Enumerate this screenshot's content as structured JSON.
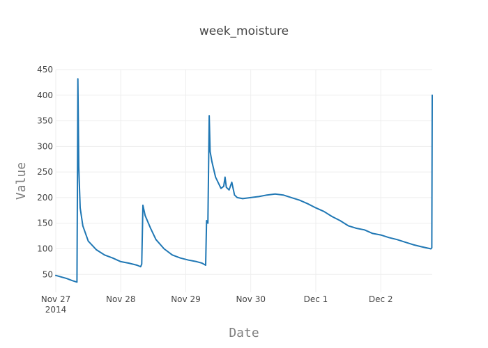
{
  "chart_data": {
    "type": "line",
    "title": "week_moisture",
    "xlabel": "Date",
    "ylabel": "Value",
    "x_axis": {
      "type": "date",
      "range": [
        "2014-11-27T00:00",
        "2014-12-02T19:00"
      ],
      "ticks": [
        {
          "date": "2014-11-27T00:00",
          "label": "Nov 27",
          "sublabel": "2014"
        },
        {
          "date": "2014-11-28T00:00",
          "label": "Nov 28"
        },
        {
          "date": "2014-11-29T00:00",
          "label": "Nov 29"
        },
        {
          "date": "2014-11-30T00:00",
          "label": "Nov 30"
        },
        {
          "date": "2014-12-01T00:00",
          "label": "Dec 1"
        },
        {
          "date": "2014-12-02T00:00",
          "label": "Dec 2"
        }
      ]
    },
    "y_axis": {
      "range": [
        15,
        450
      ],
      "ticks": [
        50,
        100,
        150,
        200,
        250,
        300,
        350,
        400,
        450
      ]
    },
    "grid": true,
    "legend": "none",
    "colors": {
      "series": "#1f77b4",
      "grid": "#eeeeee",
      "text": "#444444",
      "axis_title": "#7f7f7f"
    },
    "series": [
      {
        "color": "#1f77b4",
        "x": [
          "2014-11-27T00:00",
          "2014-11-27T02:00",
          "2014-11-27T04:00",
          "2014-11-27T06:00",
          "2014-11-27T07:50",
          "2014-11-27T08:00",
          "2014-11-27T08:10",
          "2014-11-27T08:30",
          "2014-11-27T09:00",
          "2014-11-27T10:00",
          "2014-11-27T12:00",
          "2014-11-27T15:00",
          "2014-11-27T18:00",
          "2014-11-27T21:00",
          "2014-11-28T00:00",
          "2014-11-28T03:00",
          "2014-11-28T06:00",
          "2014-11-28T07:20",
          "2014-11-28T07:45",
          "2014-11-28T08:10",
          "2014-11-28T09:00",
          "2014-11-28T11:00",
          "2014-11-28T13:00",
          "2014-11-28T16:00",
          "2014-11-28T19:00",
          "2014-11-28T22:00",
          "2014-11-29T01:00",
          "2014-11-29T04:00",
          "2014-11-29T06:00",
          "2014-11-29T07:20",
          "2014-11-29T07:40",
          "2014-11-29T08:10",
          "2014-11-29T08:40",
          "2014-11-29T09:00",
          "2014-11-29T09:40",
          "2014-11-29T11:00",
          "2014-11-29T13:00",
          "2014-11-29T14:00",
          "2014-11-29T14:30",
          "2014-11-29T15:00",
          "2014-11-29T16:00",
          "2014-11-29T17:00",
          "2014-11-29T18:00",
          "2014-11-29T19:00",
          "2014-11-29T21:00",
          "2014-11-30T00:00",
          "2014-11-30T03:00",
          "2014-11-30T06:00",
          "2014-11-30T09:00",
          "2014-11-30T12:00",
          "2014-11-30T15:00",
          "2014-11-30T18:00",
          "2014-11-30T21:00",
          "2014-12-01T00:00",
          "2014-12-01T03:00",
          "2014-12-01T06:00",
          "2014-12-01T09:00",
          "2014-12-01T12:00",
          "2014-12-01T15:00",
          "2014-12-01T18:00",
          "2014-12-01T21:00",
          "2014-12-02T00:00",
          "2014-12-02T03:00",
          "2014-12-02T06:00",
          "2014-12-02T09:00",
          "2014-12-02T12:00",
          "2014-12-02T15:00",
          "2014-12-02T18:30",
          "2014-12-02T18:50",
          "2014-12-02T19:00"
        ],
        "y": [
          48,
          45,
          42,
          38,
          35,
          230,
          432,
          260,
          180,
          145,
          115,
          98,
          88,
          82,
          75,
          72,
          68,
          65,
          70,
          185,
          165,
          140,
          118,
          100,
          88,
          82,
          78,
          75,
          72,
          68,
          155,
          150,
          360,
          290,
          270,
          240,
          218,
          222,
          240,
          220,
          215,
          230,
          205,
          200,
          198,
          200,
          202,
          205,
          207,
          205,
          200,
          195,
          188,
          180,
          173,
          163,
          155,
          145,
          140,
          137,
          130,
          127,
          122,
          118,
          113,
          108,
          104,
          100,
          102,
          400
        ]
      }
    ]
  }
}
